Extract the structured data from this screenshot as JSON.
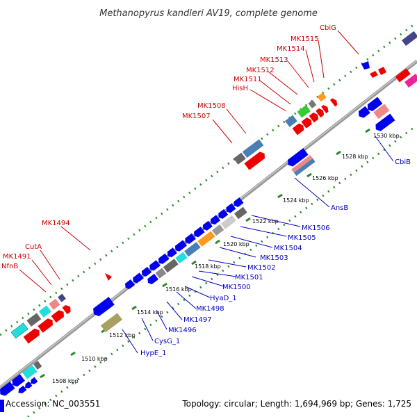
{
  "title": "Methanopyrus kandleri AV19, complete genome",
  "footer": {
    "accession": "Accession: NC_003551",
    "summary": "Topology: circular; Length: 1,694,969 bp; Genes: 1,725"
  },
  "colors": {
    "forward": "#0000ee",
    "reverse": "#ee0000",
    "backbone": "#999999",
    "dots": "#2a8a2a",
    "label_forward": "#cc0000",
    "label_reverse": "#0000bb"
  },
  "ticks": [
    "1508 kbp",
    "1510 kbp",
    "1512 kbp",
    "1514 kbp",
    "1516 kbp",
    "1518 kbp",
    "1520 kbp",
    "1522 kbp",
    "1524 kbp",
    "1526 kbp",
    "1528 kbp",
    "1530 kbp"
  ],
  "labels_top": [
    "NfnB",
    "MK1491",
    "CutA",
    "MK1494",
    "MK1507",
    "MK1508",
    "HisH",
    "MK1511",
    "MK1512",
    "MK1513",
    "MK1514",
    "MK1515",
    "CbiG"
  ],
  "labels_bottom": [
    "HypE_1",
    "CysG_1",
    "MK1496",
    "MK1497",
    "MK1498",
    "HyaD_1",
    "MK1500",
    "MK1501",
    "MK1502",
    "MK1503",
    "MK1504",
    "MK1505",
    "MK1506",
    "AnsB",
    "CbiB"
  ]
}
